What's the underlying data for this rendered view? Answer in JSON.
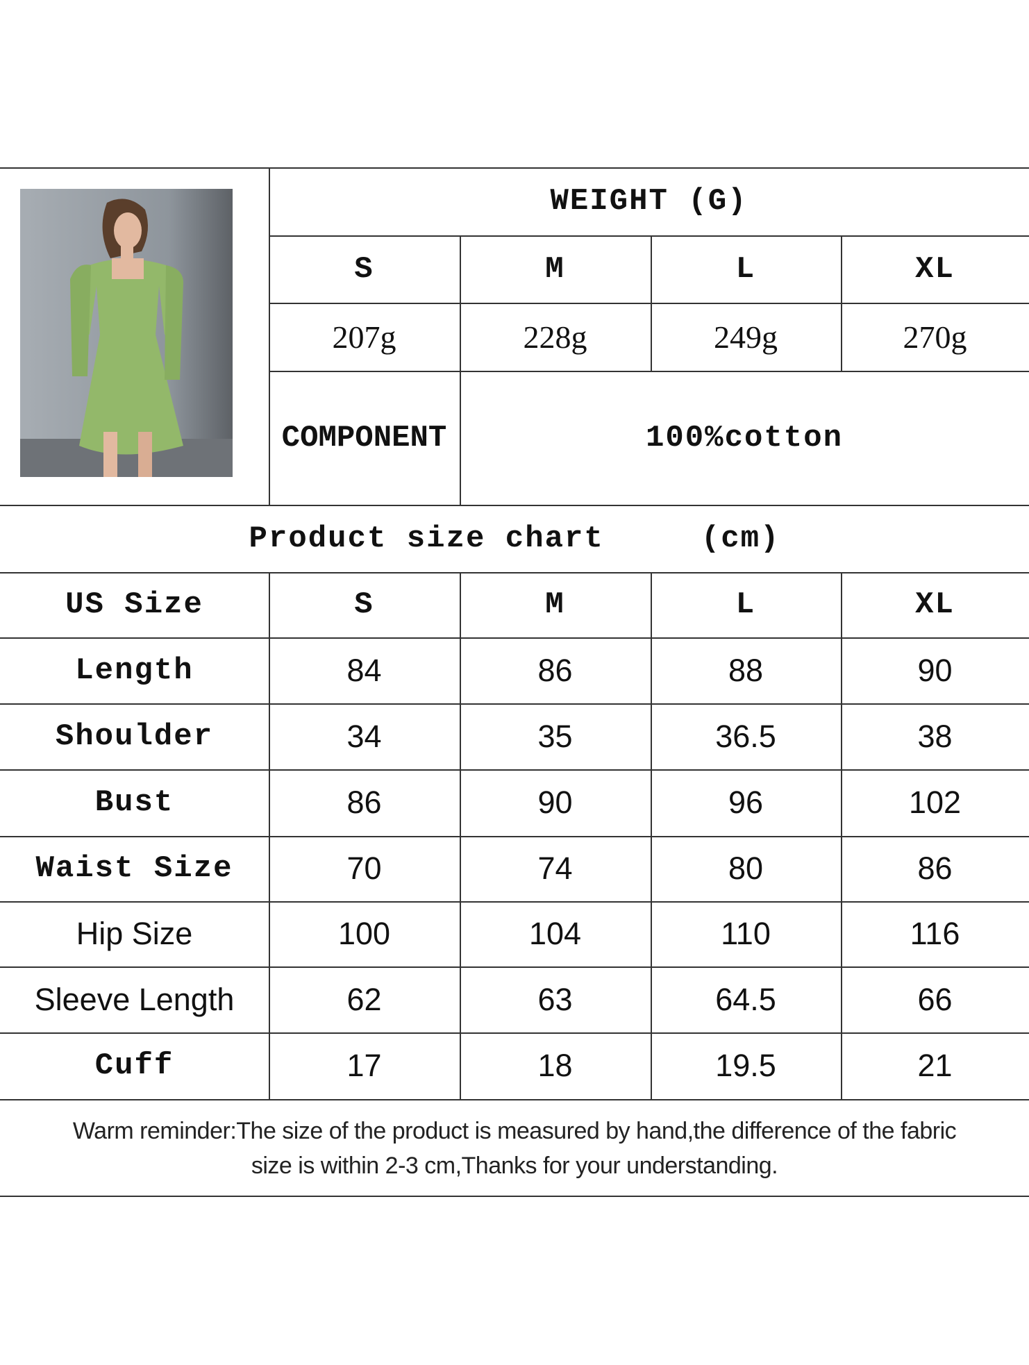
{
  "weight": {
    "title": "WEIGHT (G)",
    "sizes": [
      "S",
      "M",
      "L",
      "XL"
    ],
    "values": [
      "207g",
      "228g",
      "249g",
      "270g"
    ]
  },
  "component": {
    "label": "COMPONENT",
    "value": "100%cotton"
  },
  "size_chart": {
    "title": "Product size chart",
    "unit": "(cm)",
    "header": [
      "US Size",
      "S",
      "M",
      "L",
      "XL"
    ],
    "rows": [
      {
        "label": "Length",
        "values": [
          "84",
          "86",
          "88",
          "90"
        ]
      },
      {
        "label": "Shoulder",
        "values": [
          "34",
          "35",
          "36.5",
          "38"
        ]
      },
      {
        "label": "Bust",
        "values": [
          "86",
          "90",
          "96",
          "102"
        ]
      },
      {
        "label": "Waist Size",
        "values": [
          "70",
          "74",
          "80",
          "86"
        ]
      },
      {
        "label": "Hip Size",
        "values": [
          "100",
          "104",
          "110",
          "116"
        ]
      },
      {
        "label": "Sleeve Length",
        "values": [
          "62",
          "63",
          "64.5",
          "66"
        ]
      },
      {
        "label": "Cuff",
        "values": [
          "17",
          "18",
          "19.5",
          "21"
        ]
      }
    ]
  },
  "reminder": {
    "line1": "Warm reminder:The size of the product is measured by hand,the difference of the fabric",
    "line2": "size is within 2-3 cm,Thanks for your understanding."
  },
  "colors": {
    "dress": "#93b86a",
    "background_wall": "#9aa1a8",
    "grid_line": "#333333"
  }
}
